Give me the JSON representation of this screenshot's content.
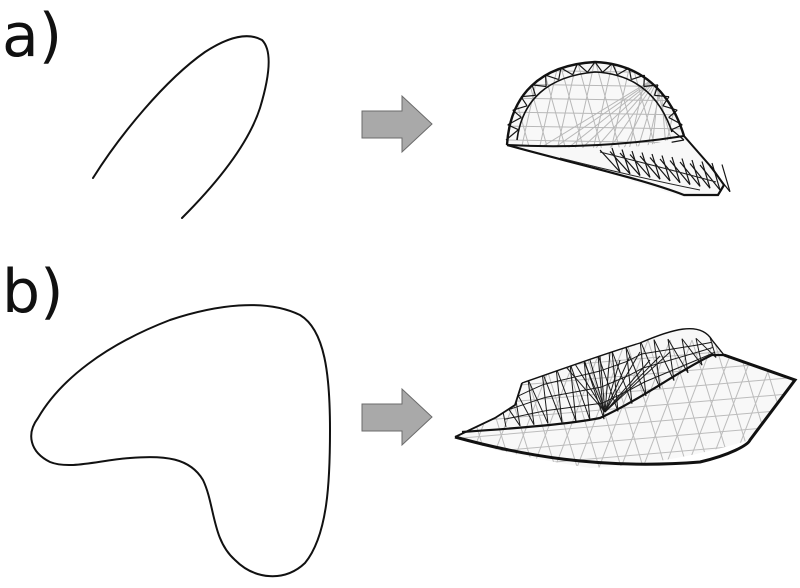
{
  "panels": [
    {
      "label": "a)",
      "sketch": "open-stroke",
      "result": "inflated-dome-mesh"
    },
    {
      "label": "b)",
      "sketch": "closed-outline",
      "result": "inflated-surface-mesh"
    }
  ],
  "arrow_icon": "right-arrow-icon",
  "colors": {
    "stroke": "#111111",
    "arrow_fill": "#a9a9a9",
    "arrow_stroke": "#6b6b6b",
    "mesh_dark": "#151515",
    "mesh_light": "#b8b8b8",
    "mesh_fill": "#f7f7f7"
  }
}
